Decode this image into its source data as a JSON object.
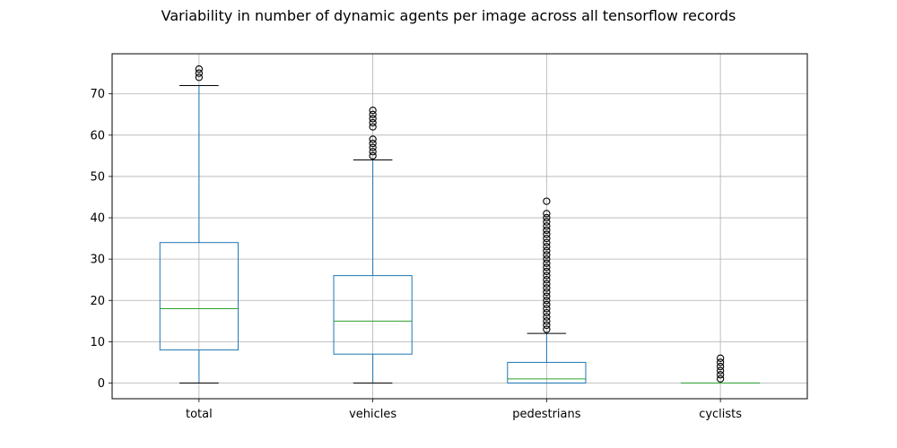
{
  "chart_data": {
    "type": "box",
    "title": "Variability in number of dynamic agents per image across all tensorflow records",
    "xlabel": "",
    "ylabel": "",
    "ylim": [
      -3.8,
      79.7
    ],
    "yticks": [
      0,
      10,
      20,
      30,
      40,
      50,
      60,
      70
    ],
    "grid": true,
    "legend": "none",
    "colors": {
      "box": "#1f77b4",
      "median": "#2ca02c",
      "whisker": "#1f77b4",
      "cap": "#000000",
      "outlier": "#000000",
      "grid": "#b0b0b0"
    },
    "categories": [
      "total",
      "vehicles",
      "pedestrians",
      "cyclists"
    ],
    "boxes": [
      {
        "label": "total",
        "whislo": 0,
        "q1": 8,
        "median": 18,
        "q3": 34,
        "whishi": 72,
        "fliers": [
          74,
          75,
          76
        ]
      },
      {
        "label": "vehicles",
        "whislo": 0,
        "q1": 7,
        "median": 15,
        "q3": 26,
        "whishi": 54,
        "fliers": [
          55,
          56,
          57,
          58,
          59,
          62,
          63,
          64,
          65,
          66
        ]
      },
      {
        "label": "pedestrians",
        "whislo": 0,
        "q1": 0,
        "median": 1,
        "q3": 5,
        "whishi": 12,
        "fliers": [
          13,
          14,
          15,
          16,
          17,
          18,
          19,
          20,
          21,
          22,
          23,
          24,
          25,
          26,
          27,
          28,
          29,
          30,
          31,
          32,
          33,
          34,
          35,
          36,
          37,
          38,
          39,
          40,
          41,
          44
        ]
      },
      {
        "label": "cyclists",
        "whislo": 0,
        "q1": 0,
        "median": 0,
        "q3": 0,
        "whishi": 0,
        "fliers": [
          1,
          2,
          3,
          4,
          5,
          6
        ]
      }
    ]
  }
}
